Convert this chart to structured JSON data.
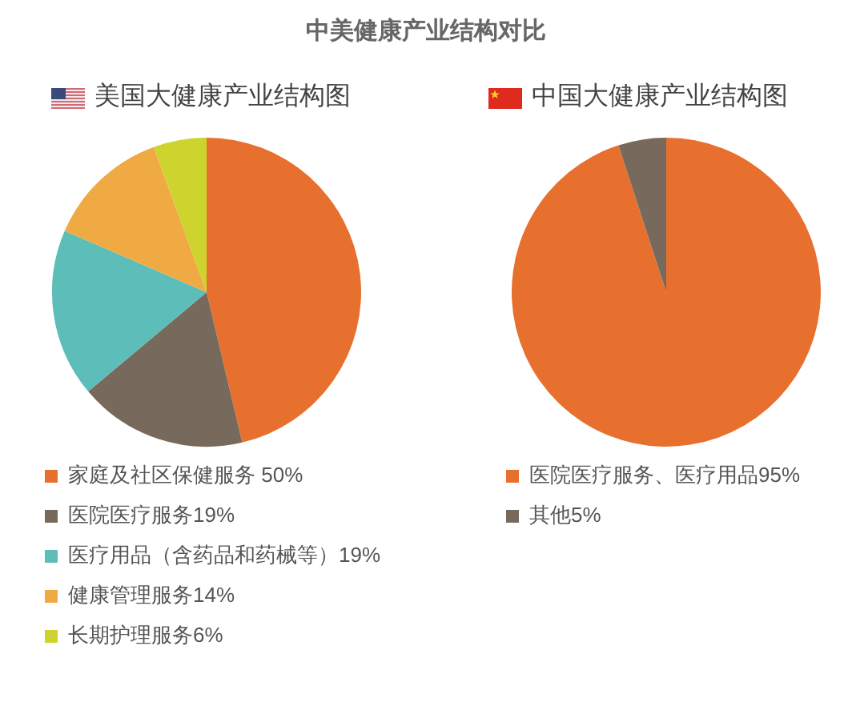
{
  "chart_data": [
    {
      "type": "pie",
      "title": "中美健康产业结构对比",
      "subtitle": "美国大健康产业结构图",
      "categories": [
        "家庭及社区保健服务 50%",
        "医院医疗服务19%",
        "医疗用品（含药品和药械等）19%",
        "健康管理服务14%",
        "长期护理服务6%"
      ],
      "values": [
        50,
        19,
        19,
        14,
        6
      ],
      "colors": [
        "#e8702e",
        "#776a5d",
        "#5dbdb8",
        "#f0aa44",
        "#cdd42e"
      ],
      "legend": "bottom"
    },
    {
      "type": "pie",
      "subtitle": "中国大健康产业结构图",
      "categories": [
        "医院医疗服务、医疗用品95%",
        "其他5%"
      ],
      "values": [
        95,
        5
      ],
      "colors": [
        "#e8702e",
        "#776a5d"
      ],
      "legend": "bottom"
    }
  ]
}
